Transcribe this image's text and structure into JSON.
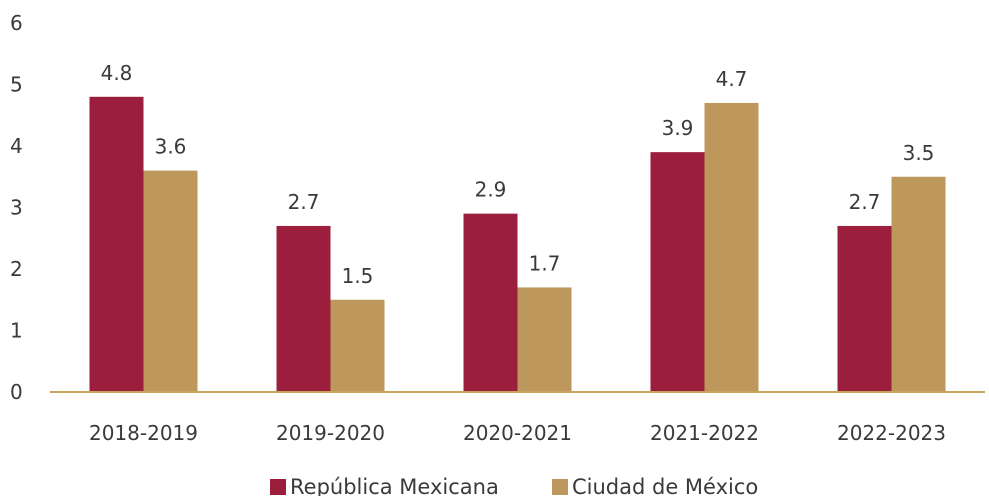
{
  "chart_data": {
    "type": "bar",
    "categories": [
      "2018-2019",
      "2019-2020",
      "2020-2021",
      "2021-2022",
      "2022-2023"
    ],
    "series": [
      {
        "name": "República Mexicana",
        "values": [
          4.8,
          2.7,
          2.9,
          3.9,
          2.7
        ],
        "labels": [
          "4.8",
          "2.7",
          "2.9",
          "3.9",
          "2.7"
        ],
        "color": "#9b1f3d"
      },
      {
        "name": "Ciudad de México",
        "values": [
          3.6,
          1.5,
          1.7,
          4.7,
          3.5
        ],
        "labels": [
          "3.6",
          "1.5",
          "1.7",
          "4.7",
          "3.5"
        ],
        "color": "#bd975c"
      }
    ],
    "yticks": [
      "0",
      "1",
      "2",
      "3",
      "4",
      "5",
      "6"
    ],
    "ylim": [
      0,
      6
    ],
    "axis_color": "#c9a45e",
    "grid": false,
    "legend_position": "bottom-center"
  }
}
